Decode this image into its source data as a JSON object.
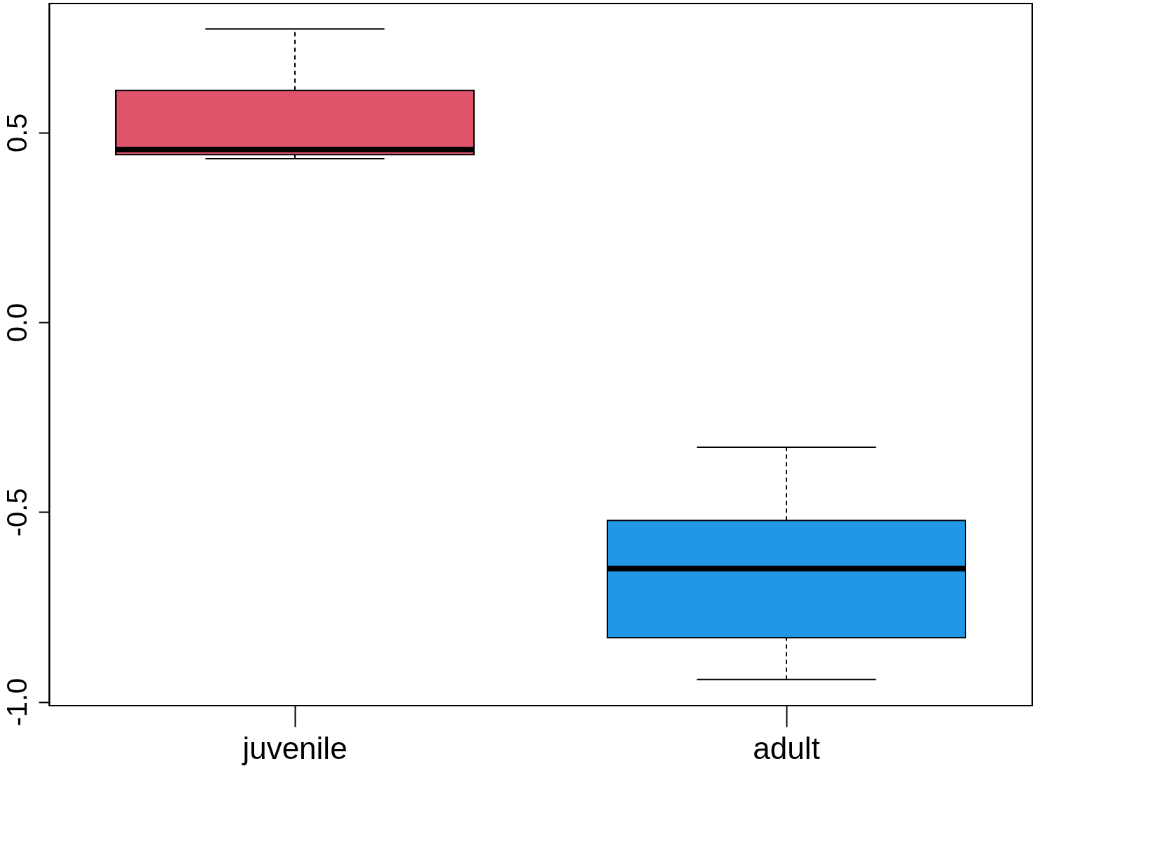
{
  "chart_data": {
    "type": "box",
    "categories": [
      "juvenile",
      "adult"
    ],
    "colors": [
      "#df536b",
      "#2297e6"
    ],
    "boxes": [
      {
        "low": 0.431,
        "q1": 0.442,
        "median": 0.455,
        "q3": 0.611,
        "high": 0.773
      },
      {
        "low": -0.941,
        "q1": -0.831,
        "median": -0.649,
        "q3": -0.522,
        "high": -0.329
      }
    ],
    "ylim": [
      -1.01,
      0.84
    ],
    "yticks": [
      {
        "value": -1.0,
        "label": "-1.0"
      },
      -0.5,
      {
        "value": 0.0,
        "label": "0.0"
      },
      0.5
    ],
    "line_style": "dashed",
    "grid": false
  }
}
